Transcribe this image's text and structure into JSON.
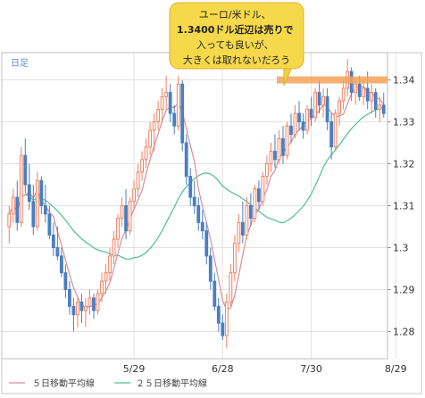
{
  "chart_data": {
    "type": "candlestick",
    "period_label": "日足",
    "annotation_lines": [
      "ユーロ/米ドル、",
      "1.3400ドル近辺は売りで",
      "入っても良いが、",
      "大きくは取れないだろう"
    ],
    "annotation_bold_prefix": "1.3400ドル",
    "resistance_level": 1.34,
    "x_tick_labels": [
      {
        "label": "5/29",
        "index": 31
      },
      {
        "label": "6/28",
        "index": 53
      },
      {
        "label": "7/30",
        "index": 75
      },
      {
        "label": "8/29",
        "index": 96
      }
    ],
    "y_ticks": [
      1.28,
      1.29,
      1.3,
      1.31,
      1.32,
      1.33,
      1.34
    ],
    "y_tick_labels": [
      "1.28",
      "1.29",
      "1.3",
      "1.31",
      "1.32",
      "1.33",
      "1.34"
    ],
    "ylim": [
      1.2735,
      1.3465
    ],
    "legend": [
      {
        "label": "５日移動平均線",
        "color": "#d98c9a"
      },
      {
        "label": "２５日移動平均線",
        "color": "#4fbf8f"
      }
    ],
    "colors": {
      "up": "#f08060",
      "down": "#4a7fc1",
      "ma5": "#d98c9a",
      "ma25": "#4fbf8f",
      "band": "#f5a35b",
      "grid": "#e2e2e2",
      "callout": "#f4d03f"
    },
    "candles": [
      [
        1.305,
        1.31,
        1.301,
        1.308
      ],
      [
        1.308,
        1.314,
        1.306,
        1.312
      ],
      [
        1.312,
        1.316,
        1.304,
        1.306
      ],
      [
        1.306,
        1.324,
        1.305,
        1.322
      ],
      [
        1.322,
        1.326,
        1.313,
        1.315
      ],
      [
        1.315,
        1.32,
        1.309,
        1.311
      ],
      [
        1.311,
        1.315,
        1.303,
        1.305
      ],
      [
        1.305,
        1.318,
        1.304,
        1.316
      ],
      [
        1.316,
        1.317,
        1.308,
        1.31
      ],
      [
        1.31,
        1.315,
        1.306,
        1.308
      ],
      [
        1.308,
        1.31,
        1.302,
        1.303
      ],
      [
        1.303,
        1.306,
        1.298,
        1.3
      ],
      [
        1.3,
        1.305,
        1.297,
        1.298
      ],
      [
        1.298,
        1.3,
        1.293,
        1.294
      ],
      [
        1.294,
        1.296,
        1.288,
        1.29
      ],
      [
        1.29,
        1.292,
        1.284,
        1.286
      ],
      [
        1.286,
        1.288,
        1.28,
        1.284
      ],
      [
        1.284,
        1.288,
        1.281,
        1.287
      ],
      [
        1.287,
        1.289,
        1.282,
        1.285
      ],
      [
        1.285,
        1.288,
        1.281,
        1.286
      ],
      [
        1.286,
        1.29,
        1.284,
        1.288
      ],
      [
        1.288,
        1.289,
        1.283,
        1.285
      ],
      [
        1.285,
        1.29,
        1.284,
        1.289
      ],
      [
        1.289,
        1.294,
        1.287,
        1.292
      ],
      [
        1.292,
        1.296,
        1.289,
        1.294
      ],
      [
        1.294,
        1.3,
        1.292,
        1.298
      ],
      [
        1.298,
        1.304,
        1.296,
        1.302
      ],
      [
        1.302,
        1.308,
        1.3,
        1.307
      ],
      [
        1.307,
        1.312,
        1.305,
        1.31
      ],
      [
        1.31,
        1.314,
        1.302,
        1.304
      ],
      [
        1.304,
        1.312,
        1.303,
        1.311
      ],
      [
        1.311,
        1.316,
        1.309,
        1.314
      ],
      [
        1.314,
        1.32,
        1.312,
        1.318
      ],
      [
        1.318,
        1.323,
        1.316,
        1.321
      ],
      [
        1.321,
        1.326,
        1.319,
        1.324
      ],
      [
        1.324,
        1.33,
        1.322,
        1.328
      ],
      [
        1.328,
        1.332,
        1.323,
        1.33
      ],
      [
        1.33,
        1.335,
        1.328,
        1.333
      ],
      [
        1.333,
        1.338,
        1.33,
        1.336
      ],
      [
        1.336,
        1.341,
        1.333,
        1.337
      ],
      [
        1.337,
        1.339,
        1.33,
        1.332
      ],
      [
        1.332,
        1.334,
        1.327,
        1.329
      ],
      [
        1.329,
        1.341,
        1.328,
        1.339
      ],
      [
        1.339,
        1.34,
        1.323,
        1.325
      ],
      [
        1.325,
        1.327,
        1.315,
        1.317
      ],
      [
        1.317,
        1.319,
        1.31,
        1.312
      ],
      [
        1.312,
        1.316,
        1.308,
        1.31
      ],
      [
        1.31,
        1.312,
        1.304,
        1.306
      ],
      [
        1.306,
        1.309,
        1.302,
        1.304
      ],
      [
        1.304,
        1.306,
        1.296,
        1.298
      ],
      [
        1.298,
        1.3,
        1.29,
        1.292
      ],
      [
        1.292,
        1.294,
        1.285,
        1.286
      ],
      [
        1.286,
        1.288,
        1.28,
        1.282
      ],
      [
        1.282,
        1.284,
        1.278,
        1.279
      ],
      [
        1.279,
        1.289,
        1.276,
        1.287
      ],
      [
        1.287,
        1.296,
        1.286,
        1.294
      ],
      [
        1.294,
        1.303,
        1.292,
        1.301
      ],
      [
        1.301,
        1.308,
        1.299,
        1.306
      ],
      [
        1.306,
        1.311,
        1.301,
        1.303
      ],
      [
        1.303,
        1.312,
        1.302,
        1.31
      ],
      [
        1.31,
        1.313,
        1.305,
        1.307
      ],
      [
        1.307,
        1.315,
        1.306,
        1.314
      ],
      [
        1.314,
        1.316,
        1.309,
        1.311
      ],
      [
        1.311,
        1.318,
        1.31,
        1.317
      ],
      [
        1.317,
        1.322,
        1.315,
        1.32
      ],
      [
        1.32,
        1.325,
        1.318,
        1.323
      ],
      [
        1.323,
        1.327,
        1.319,
        1.321
      ],
      [
        1.321,
        1.328,
        1.32,
        1.326
      ],
      [
        1.326,
        1.329,
        1.32,
        1.322
      ],
      [
        1.322,
        1.33,
        1.321,
        1.329
      ],
      [
        1.329,
        1.332,
        1.325,
        1.327
      ],
      [
        1.327,
        1.334,
        1.326,
        1.332
      ],
      [
        1.332,
        1.335,
        1.328,
        1.33
      ],
      [
        1.33,
        1.332,
        1.326,
        1.328
      ],
      [
        1.328,
        1.334,
        1.327,
        1.333
      ],
      [
        1.333,
        1.336,
        1.329,
        1.331
      ],
      [
        1.331,
        1.338,
        1.33,
        1.337
      ],
      [
        1.337,
        1.34,
        1.332,
        1.334
      ],
      [
        1.334,
        1.338,
        1.331,
        1.336
      ],
      [
        1.336,
        1.338,
        1.328,
        1.33
      ],
      [
        1.33,
        1.332,
        1.321,
        1.324
      ],
      [
        1.324,
        1.333,
        1.323,
        1.332
      ],
      [
        1.332,
        1.336,
        1.329,
        1.335
      ],
      [
        1.335,
        1.34,
        1.333,
        1.338
      ],
      [
        1.338,
        1.345,
        1.336,
        1.342
      ],
      [
        1.342,
        1.343,
        1.335,
        1.337
      ],
      [
        1.337,
        1.34,
        1.334,
        1.339
      ],
      [
        1.339,
        1.341,
        1.335,
        1.336
      ],
      [
        1.336,
        1.34,
        1.334,
        1.338
      ],
      [
        1.338,
        1.342,
        1.333,
        1.335
      ],
      [
        1.335,
        1.339,
        1.332,
        1.337
      ],
      [
        1.337,
        1.338,
        1.331,
        1.333
      ],
      [
        1.333,
        1.336,
        1.33,
        1.334
      ],
      [
        1.334,
        1.337,
        1.331,
        1.332
      ]
    ]
  }
}
